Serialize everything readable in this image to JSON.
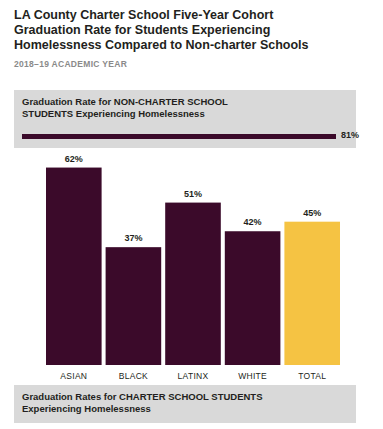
{
  "chart_data": [
    {
      "type": "bar",
      "orientation": "horizontal",
      "title": "Graduation Rate for NON-CHARTER SCHOOL STUDENTS Experiencing Homelessness",
      "categories": [
        null
      ],
      "values": [
        81
      ],
      "value_labels": [
        "81%"
      ],
      "color": "#3b0a2a",
      "xlim": [
        0,
        81
      ],
      "tick_labels": false,
      "data_labels": true
    },
    {
      "type": "bar",
      "title": "LA County Charter School Five-Year Cohort Graduation Rate for Students Experiencing Homelessness Compared to Non-charter Schools",
      "subtitle": "2018–19 ACADEMIC YEAR",
      "xlabel": "Graduation Rates for CHARTER SCHOOL STUDENTS Experiencing Homelessness",
      "categories": [
        "ASIAN",
        "BLACK",
        "LATINX",
        "WHITE",
        "TOTAL"
      ],
      "values": [
        62,
        37,
        51,
        42,
        45
      ],
      "value_labels": [
        "62%",
        "37%",
        "51%",
        "42%",
        "45%"
      ],
      "colors": [
        "#3b0a2a",
        "#3b0a2a",
        "#3b0a2a",
        "#3b0a2a",
        "#f5c343"
      ],
      "ylim": [
        0,
        65
      ],
      "tick_labels": "x",
      "data_labels": true
    }
  ]
}
